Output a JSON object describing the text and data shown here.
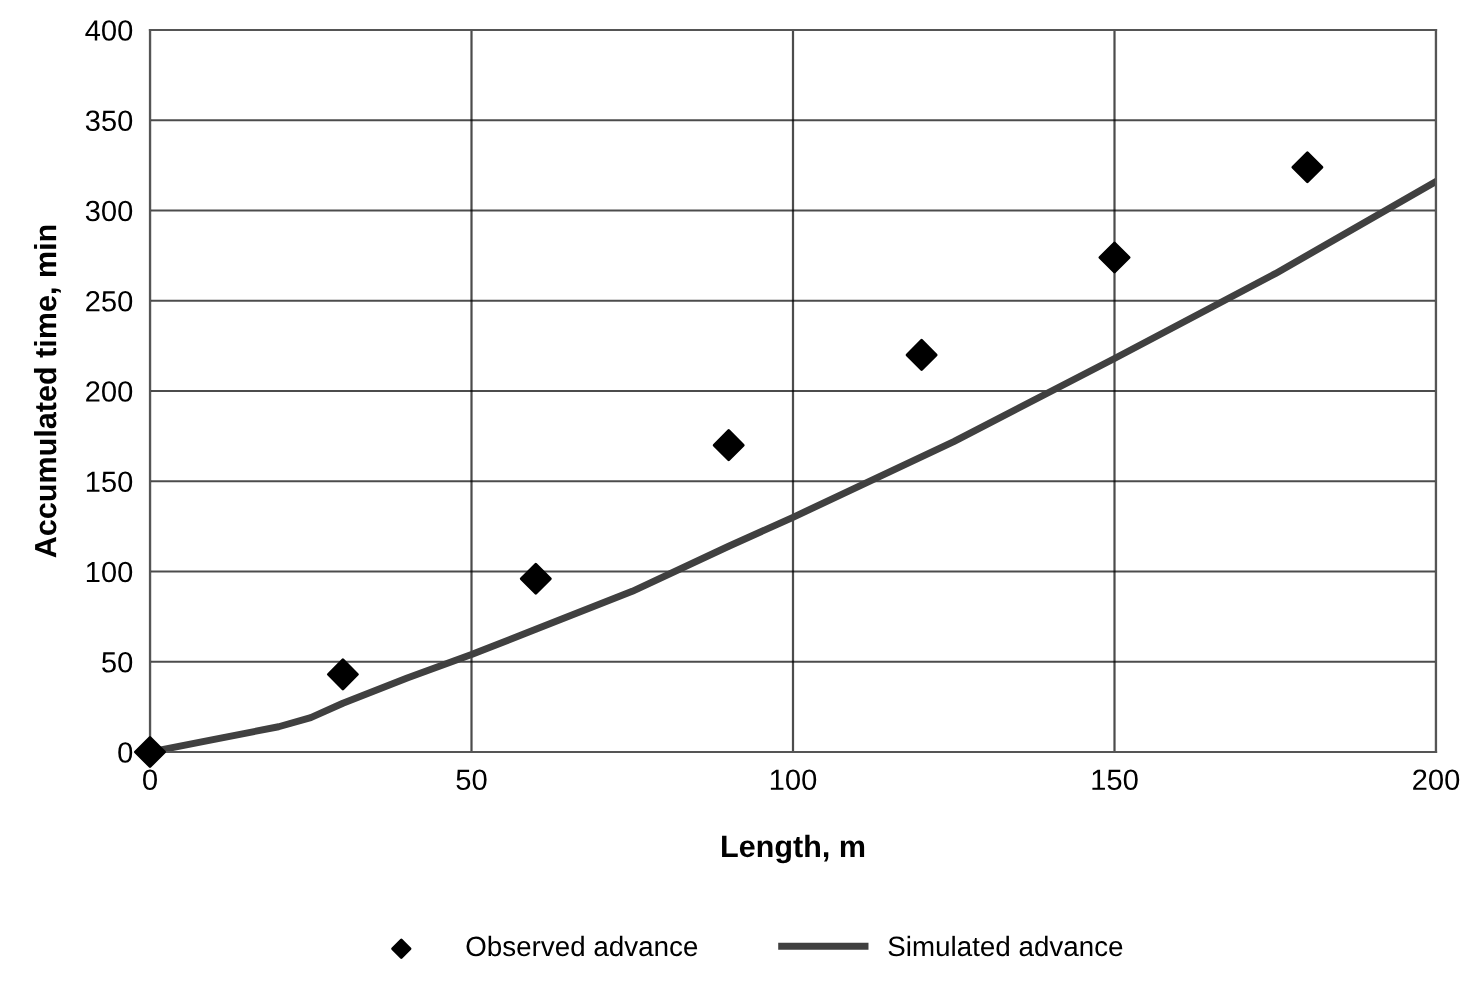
{
  "chart_data": {
    "type": "scatter",
    "xlabel": "Length, m",
    "ylabel": "Accumulated time, min",
    "xlim": [
      0,
      200
    ],
    "xticks": [
      0,
      50,
      100,
      150,
      200
    ],
    "ylim": [
      0,
      400
    ],
    "yticks": [
      0,
      50,
      100,
      150,
      200,
      250,
      300,
      350,
      400
    ],
    "grid": true,
    "legend": "bottom",
    "series": [
      {
        "name": "Observed advance",
        "marker": "diamond",
        "color": "#000000",
        "x": [
          0,
          30,
          60,
          90,
          120,
          150,
          180
        ],
        "values": [
          0,
          43,
          96,
          170,
          220,
          274,
          324
        ]
      },
      {
        "name": "Simulated advance",
        "type": "line",
        "marker": "none",
        "color": "#404040",
        "x": [
          0,
          10,
          20,
          25,
          30,
          40,
          50,
          60,
          75,
          90,
          100,
          125,
          150,
          175,
          200
        ],
        "values": [
          0,
          7,
          14,
          19,
          27,
          41,
          54,
          68,
          89,
          114,
          130,
          172,
          218,
          265,
          316
        ]
      }
    ]
  }
}
